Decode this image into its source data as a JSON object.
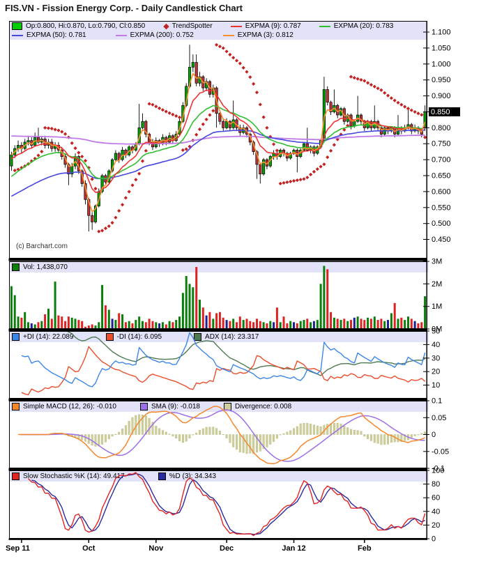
{
  "title": "FIS.VN - Fission Energy Corp. - Daily Candlestick Chart",
  "copyright": "(c) Barchart.com",
  "colors": {
    "candle_up": "#00A400",
    "candle_down": "#BE3232",
    "ohlc_swatch": "#00CC00",
    "trendspotter": "#C32222",
    "expma3": "#F78F2E",
    "expma9": "#EE3333",
    "expma20": "#2FBF2F",
    "expma50": "#4747DD",
    "expma200": "#C07AE8",
    "vol_up": "#0B7D0B",
    "vol_down": "#DD2222",
    "vol_neutral": "#1F1F8F",
    "plus_di": "#3C86E8",
    "minus_di": "#EA4E2B",
    "adx": "#4E7A52",
    "macd": "#F5872B",
    "macd_signal": "#9B6FE8",
    "divergence": "#CFCF9C",
    "divergence_border": "#B5B578",
    "stoch_k": "#E02424",
    "stoch_d": "#2A2AA0",
    "legend_bg": "#E2E2F8",
    "badge_bg": "#000000",
    "badge_text": "#FFFFFF",
    "frame": "#000000",
    "axis_text": "#000000"
  },
  "chart_data": {
    "type": "candlestick-multi-panel",
    "symbol": "FIS.VN",
    "months": [
      {
        "label": "Sep 11",
        "candle_index": 3,
        "align": "left"
      },
      {
        "label": "Oct",
        "candle_index": 23
      },
      {
        "label": "Nov",
        "candle_index": 43
      },
      {
        "label": "Dec",
        "candle_index": 64
      },
      {
        "label": "Jan 12",
        "candle_index": 84
      },
      {
        "label": "Feb",
        "candle_index": 105
      }
    ],
    "indicator_params": {
      "trendspotter": "parabolic-stop",
      "ema_periods": [
        3,
        9,
        20,
        50,
        200
      ],
      "ema_seeds": {
        "9": 0.7,
        "20": 0.64,
        "50": 0.58,
        "200": 0.775
      },
      "macd": [
        12,
        26,
        9
      ],
      "dmi_period": 14,
      "stochastic": [
        14,
        3,
        3
      ]
    },
    "panels": {
      "price": {
        "legend": {
          "ohlc": "Op:0.800, Hi:0.870, Lo:0.790, Cl:0.850",
          "trendspotter": "TrendSpotter",
          "expma9": "EXPMA (9): 0.787",
          "expma20": "EXPMA (20): 0.783",
          "expma50": "EXPMA (50): 0.781",
          "expma200": "EXPMA (200): 0.752",
          "expma3": "EXPMA (3): 0.812"
        },
        "y_ticks": [
          "1.100",
          "1.050",
          "1.000",
          "0.950",
          "0.900",
          "0.850",
          "0.800",
          "0.750",
          "0.700",
          "0.650",
          "0.600",
          "0.550",
          "0.500",
          "0.450"
        ],
        "last_price_label": "0.850",
        "series": {
          "candles_ohlc": [
            [
              0.68,
              0.725,
              0.665,
              0.715
            ],
            [
              0.715,
              0.745,
              0.705,
              0.735
            ],
            [
              0.735,
              0.76,
              0.725,
              0.745
            ],
            [
              0.745,
              0.755,
              0.72,
              0.735
            ],
            [
              0.735,
              0.765,
              0.73,
              0.755
            ],
            [
              0.755,
              0.775,
              0.745,
              0.76
            ],
            [
              0.76,
              0.77,
              0.735,
              0.745
            ],
            [
              0.745,
              0.785,
              0.74,
              0.77
            ],
            [
              0.77,
              0.8,
              0.75,
              0.755
            ],
            [
              0.755,
              0.775,
              0.745,
              0.765
            ],
            [
              0.765,
              0.775,
              0.735,
              0.745
            ],
            [
              0.745,
              0.765,
              0.735,
              0.755
            ],
            [
              0.755,
              0.765,
              0.725,
              0.735
            ],
            [
              0.735,
              0.755,
              0.725,
              0.745
            ],
            [
              0.745,
              0.755,
              0.72,
              0.73
            ],
            [
              0.73,
              0.74,
              0.7,
              0.71
            ],
            [
              0.71,
              0.72,
              0.675,
              0.685
            ],
            [
              0.685,
              0.69,
              0.62,
              0.655
            ],
            [
              0.655,
              0.69,
              0.645,
              0.68
            ],
            [
              0.68,
              0.72,
              0.67,
              0.71
            ],
            [
              0.71,
              0.715,
              0.655,
              0.665
            ],
            [
              0.665,
              0.67,
              0.615,
              0.625
            ],
            [
              0.625,
              0.635,
              0.56,
              0.575
            ],
            [
              0.575,
              0.58,
              0.475,
              0.525
            ],
            [
              0.525,
              0.535,
              0.48,
              0.505
            ],
            [
              0.505,
              0.56,
              0.5,
              0.555
            ],
            [
              0.555,
              0.61,
              0.55,
              0.6
            ],
            [
              0.6,
              0.655,
              0.595,
              0.65
            ],
            [
              0.65,
              0.655,
              0.62,
              0.63
            ],
            [
              0.63,
              0.67,
              0.625,
              0.665
            ],
            [
              0.665,
              0.705,
              0.66,
              0.7
            ],
            [
              0.7,
              0.73,
              0.695,
              0.72
            ],
            [
              0.72,
              0.725,
              0.69,
              0.7
            ],
            [
              0.7,
              0.74,
              0.695,
              0.73
            ],
            [
              0.73,
              0.735,
              0.705,
              0.715
            ],
            [
              0.715,
              0.745,
              0.71,
              0.74
            ],
            [
              0.74,
              0.745,
              0.72,
              0.73
            ],
            [
              0.73,
              0.755,
              0.725,
              0.75
            ],
            [
              0.75,
              0.875,
              0.745,
              0.8
            ],
            [
              0.8,
              0.845,
              0.79,
              0.82
            ],
            [
              0.82,
              0.825,
              0.77,
              0.78
            ],
            [
              0.78,
              0.785,
              0.745,
              0.755
            ],
            [
              0.755,
              0.765,
              0.73,
              0.74
            ],
            [
              0.74,
              0.77,
              0.735,
              0.76
            ],
            [
              0.76,
              0.765,
              0.74,
              0.75
            ],
            [
              0.75,
              0.78,
              0.745,
              0.77
            ],
            [
              0.77,
              0.775,
              0.745,
              0.755
            ],
            [
              0.755,
              0.785,
              0.75,
              0.775
            ],
            [
              0.775,
              0.78,
              0.75,
              0.76
            ],
            [
              0.76,
              0.79,
              0.755,
              0.78
            ],
            [
              0.78,
              0.83,
              0.775,
              0.82
            ],
            [
              0.82,
              0.88,
              0.815,
              0.87
            ],
            [
              0.87,
              0.94,
              0.865,
              0.93
            ],
            [
              0.93,
              1.06,
              0.925,
              0.99
            ],
            [
              0.99,
              1.03,
              0.975,
              1.005
            ],
            [
              1.005,
              1.03,
              0.93,
              0.94
            ],
            [
              0.94,
              0.975,
              0.93,
              0.96
            ],
            [
              0.96,
              0.965,
              0.915,
              0.925
            ],
            [
              0.925,
              0.955,
              0.915,
              0.945
            ],
            [
              0.945,
              0.95,
              0.895,
              0.905
            ],
            [
              0.905,
              0.935,
              0.895,
              0.925
            ],
            [
              0.925,
              0.93,
              0.8,
              0.845
            ],
            [
              0.845,
              0.855,
              0.81,
              0.82
            ],
            [
              0.82,
              0.83,
              0.79,
              0.8
            ],
            [
              0.8,
              0.83,
              0.795,
              0.82
            ],
            [
              0.82,
              0.825,
              0.79,
              0.8
            ],
            [
              0.8,
              0.885,
              0.795,
              0.825
            ],
            [
              0.825,
              0.83,
              0.79,
              0.8
            ],
            [
              0.8,
              0.81,
              0.775,
              0.785
            ],
            [
              0.785,
              0.81,
              0.78,
              0.8
            ],
            [
              0.8,
              0.805,
              0.77,
              0.78
            ],
            [
              0.78,
              0.785,
              0.745,
              0.755
            ],
            [
              0.755,
              0.76,
              0.715,
              0.725
            ],
            [
              0.725,
              0.73,
              0.64,
              0.685
            ],
            [
              0.685,
              0.69,
              0.625,
              0.655
            ],
            [
              0.655,
              0.705,
              0.65,
              0.7
            ],
            [
              0.7,
              0.705,
              0.67,
              0.68
            ],
            [
              0.68,
              0.715,
              0.675,
              0.71
            ],
            [
              0.71,
              0.73,
              0.7,
              0.72
            ],
            [
              0.72,
              0.725,
              0.7,
              0.71
            ],
            [
              0.71,
              0.735,
              0.705,
              0.73
            ],
            [
              0.73,
              0.735,
              0.71,
              0.72
            ],
            [
              0.72,
              0.725,
              0.695,
              0.705
            ],
            [
              0.705,
              0.725,
              0.7,
              0.72
            ],
            [
              0.72,
              0.735,
              0.715,
              0.73
            ],
            [
              0.73,
              0.735,
              0.66,
              0.71
            ],
            [
              0.71,
              0.735,
              0.705,
              0.73
            ],
            [
              0.73,
              0.755,
              0.725,
              0.75
            ],
            [
              0.75,
              0.8,
              0.725,
              0.73
            ],
            [
              0.73,
              0.745,
              0.72,
              0.74
            ],
            [
              0.74,
              0.745,
              0.71,
              0.72
            ],
            [
              0.72,
              0.745,
              0.715,
              0.74
            ],
            [
              0.74,
              0.765,
              0.735,
              0.76
            ],
            [
              0.76,
              0.96,
              0.755,
              0.92
            ],
            [
              0.92,
              0.93,
              0.87,
              0.88
            ],
            [
              0.88,
              0.885,
              0.84,
              0.85
            ],
            [
              0.85,
              0.92,
              0.845,
              0.87
            ],
            [
              0.87,
              0.875,
              0.83,
              0.84
            ],
            [
              0.84,
              0.865,
              0.835,
              0.86
            ],
            [
              0.86,
              0.865,
              0.81,
              0.82
            ],
            [
              0.82,
              0.845,
              0.815,
              0.84
            ],
            [
              0.84,
              0.845,
              0.795,
              0.805
            ],
            [
              0.805,
              0.825,
              0.8,
              0.82
            ],
            [
              0.82,
              0.9,
              0.815,
              0.84
            ],
            [
              0.84,
              0.845,
              0.81,
              0.82
            ],
            [
              0.82,
              0.825,
              0.79,
              0.8
            ],
            [
              0.8,
              0.825,
              0.795,
              0.82
            ],
            [
              0.82,
              0.825,
              0.79,
              0.8
            ],
            [
              0.8,
              0.87,
              0.795,
              0.82
            ],
            [
              0.82,
              0.825,
              0.79,
              0.8
            ],
            [
              0.8,
              0.805,
              0.77,
              0.78
            ],
            [
              0.78,
              0.805,
              0.775,
              0.8
            ],
            [
              0.8,
              0.805,
              0.78,
              0.79
            ],
            [
              0.79,
              0.805,
              0.785,
              0.8
            ],
            [
              0.8,
              0.805,
              0.77,
              0.78
            ],
            [
              0.78,
              0.84,
              0.775,
              0.8
            ],
            [
              0.8,
              0.805,
              0.78,
              0.79
            ],
            [
              0.79,
              0.81,
              0.785,
              0.8
            ],
            [
              0.8,
              0.86,
              0.795,
              0.81
            ],
            [
              0.81,
              0.815,
              0.78,
              0.79
            ],
            [
              0.79,
              0.81,
              0.785,
              0.8
            ],
            [
              0.8,
              0.805,
              0.78,
              0.79
            ],
            [
              0.79,
              0.795,
              0.77,
              0.78
            ],
            [
              0.8,
              0.87,
              0.79,
              0.85
            ]
          ]
        }
      },
      "volume": {
        "legend": {
          "vol": "Vol: 1,438,070"
        },
        "y_ticks": [
          "3M",
          "2M",
          "1M",
          "0M"
        ],
        "values_millions": [
          1.9,
          1.5,
          0.55,
          0.5,
          0.75,
          0.3,
          0.25,
          0.2,
          0.3,
          0.35,
          0.65,
          0.9,
          0.45,
          2.1,
          0.6,
          0.55,
          0.35,
          0.55,
          0.5,
          0.45,
          0.4,
          0.35,
          0.1,
          0.15,
          0.2,
          0.15,
          0.3,
          1.95,
          1.05,
          0.85,
          0.45,
          0.4,
          0.7,
          0.65,
          0.3,
          0.35,
          0.25,
          0.4,
          0.55,
          0.35,
          0.3,
          0.45,
          0.35,
          0.3,
          0.25,
          0.3,
          0.2,
          0.35,
          0.3,
          0.4,
          0.55,
          1.6,
          2.35,
          2.0,
          1.85,
          2.75,
          1.3,
          0.95,
          0.6,
          0.75,
          0.45,
          0.7,
          0.75,
          0.5,
          0.4,
          0.35,
          0.45,
          0.3,
          0.55,
          0.4,
          0.45,
          0.35,
          0.3,
          0.45,
          0.35,
          0.3,
          0.25,
          0.35,
          0.3,
          0.95,
          0.3,
          0.55,
          0.25,
          0.35,
          0.3,
          0.25,
          0.35,
          0.4,
          0.45,
          0.3,
          0.35,
          0.4,
          2.0,
          2.8,
          2.65,
          0.75,
          0.5,
          0.45,
          0.4,
          0.45,
          0.35,
          0.4,
          0.5,
          0.55,
          0.45,
          0.4,
          0.5,
          0.45,
          0.55,
          0.4,
          0.45,
          0.35,
          0.4,
          0.7,
          1.15,
          0.45,
          0.5,
          0.4,
          0.55,
          0.45,
          0.35,
          0.25,
          0.3,
          1.45
        ],
        "bar_colors": "gggrggbgrgrgrgrrrrggrrrrrgggrgbgrgrgrgggrrrgbgrgrggggggrgrbrgrrrbrgrrgrrrrrgrgbrgrrgbrggrgbgggrrgrgrgrbgrrgrgrrgbgrgrggrbrrg"
      },
      "dmi": {
        "legend": {
          "plus_di": "+DI (14): 22.089",
          "minus_di": "-DI (14): 6.095",
          "adx": "ADX (14): 23.317"
        },
        "y_ticks": [
          "50",
          "40",
          "30",
          "20",
          "10"
        ]
      },
      "macd": {
        "legend": {
          "macd": "Simple MACD (12, 26): -0.010",
          "sma": "SMA (9): -0.018",
          "divergence": "Divergence: 0.008"
        },
        "y_ticks": [
          "0.1",
          "0.05",
          "0",
          "-0.05",
          "-0.1"
        ]
      },
      "stochastic": {
        "legend": {
          "k": "Slow Stochastic %K (14): 49.417",
          "d": "%D (3): 34.343"
        },
        "y_ticks": [
          "100",
          "80",
          "60",
          "40",
          "20",
          "0"
        ]
      }
    }
  }
}
